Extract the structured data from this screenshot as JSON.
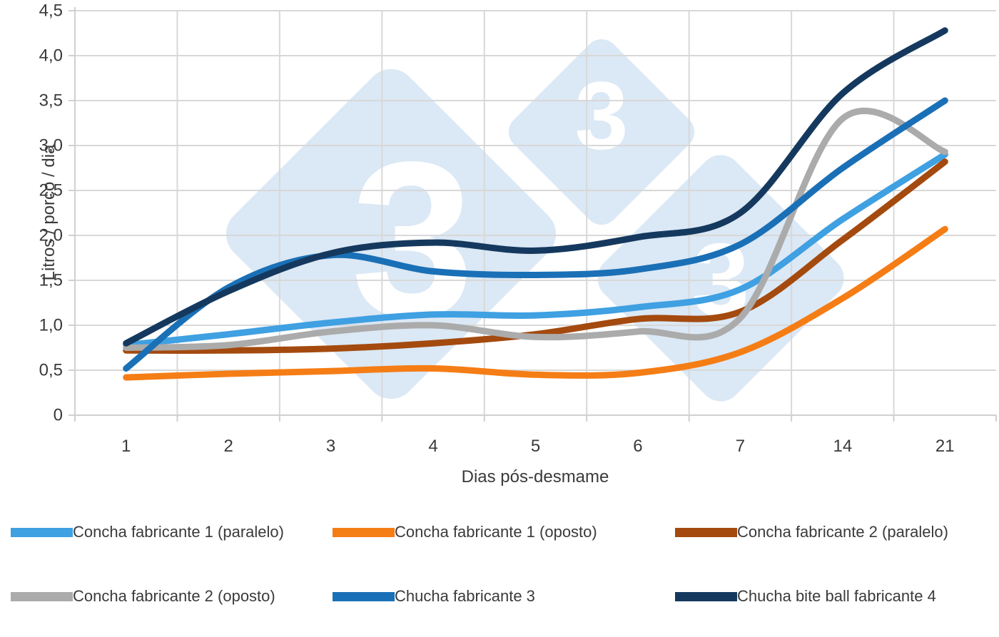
{
  "chart_data": {
    "type": "line",
    "title": "",
    "categories": [
      "1",
      "2",
      "3",
      "4",
      "5",
      "6",
      "7",
      "14",
      "21"
    ],
    "xlabel": "Dias pós-desmame",
    "ylabel": "Litros / porco / dia",
    "ylim": [
      0,
      4.5
    ],
    "ytick_step": 0.5,
    "ytick_labels": [
      "0",
      "0,5",
      "1,0",
      "1,5",
      "2,0",
      "2,5",
      "3,0",
      "3,5",
      "4,0",
      "4,5"
    ],
    "grid": true,
    "legend_position": "bottom",
    "series": [
      {
        "name": "Concha fabricante 1 (paralelo)",
        "color": "#3fa0e2",
        "values": [
          0.78,
          0.9,
          1.03,
          1.12,
          1.11,
          1.2,
          1.4,
          2.18,
          2.9
        ]
      },
      {
        "name": "Concha fabricante 1 (oposto)",
        "color": "#f57d15",
        "values": [
          0.42,
          0.46,
          0.49,
          0.52,
          0.45,
          0.47,
          0.7,
          1.3,
          2.07
        ]
      },
      {
        "name": "Concha fabricante 2 (paralelo)",
        "color": "#a44a0f",
        "values": [
          0.72,
          0.72,
          0.74,
          0.8,
          0.9,
          1.07,
          1.15,
          1.95,
          2.82
        ]
      },
      {
        "name": "Concha fabricante 2 (oposto)",
        "color": "#ababab",
        "values": [
          0.75,
          0.78,
          0.93,
          1.0,
          0.87,
          0.93,
          1.08,
          3.3,
          2.93
        ]
      },
      {
        "name": "Chucha fabricante 3",
        "color": "#1a70b6",
        "values": [
          0.52,
          1.42,
          1.78,
          1.6,
          1.56,
          1.62,
          1.9,
          2.75,
          3.5
        ]
      },
      {
        "name": "Chucha bite ball fabricante 4",
        "color": "#15395e",
        "values": [
          0.8,
          1.38,
          1.8,
          1.92,
          1.83,
          1.98,
          2.25,
          3.58,
          4.28
        ]
      }
    ]
  },
  "watermark": {
    "glyph": "3",
    "fill": "#dbe8f5",
    "glyph_color": "#ffffff"
  },
  "style": {
    "gridline_color": "#d8d8d8",
    "axis_color": "#d0d0d0",
    "text_color": "#3a3a3a",
    "line_width": 9
  }
}
